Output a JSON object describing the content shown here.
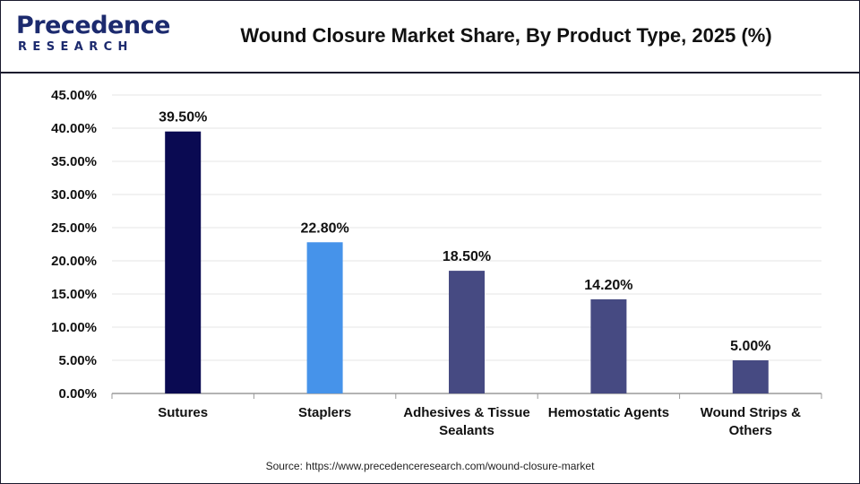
{
  "brand": {
    "logo_main": "Precedence",
    "logo_sub": "RESEARCH"
  },
  "title": "Wound Closure Market Share, By Product Type, 2025 (%)",
  "source": "Source: https://www.precedenceresearch.com/wound-closure-market",
  "chart_data": {
    "type": "bar",
    "title": "Wound Closure Market Share, By Product Type, 2025 (%)",
    "xlabel": "",
    "ylabel": "",
    "categories": [
      [
        "Sutures"
      ],
      [
        "Staplers"
      ],
      [
        "Adhesives & Tissue",
        "Sealants"
      ],
      [
        "Hemostatic Agents"
      ],
      [
        "Wound Strips &",
        "Others"
      ]
    ],
    "values": [
      39.5,
      22.8,
      18.5,
      14.2,
      5.0
    ],
    "data_labels": [
      "39.50%",
      "22.80%",
      "18.50%",
      "14.20%",
      "5.00%"
    ],
    "bar_colors": [
      "#0a0a52",
      "#4693ea",
      "#464a82",
      "#464a82",
      "#464a82"
    ],
    "ylim": [
      0,
      45
    ],
    "yticks": [
      0,
      5,
      10,
      15,
      20,
      25,
      30,
      35,
      40,
      45
    ],
    "ytick_labels": [
      "0.00%",
      "5.00%",
      "10.00%",
      "15.00%",
      "20.00%",
      "25.00%",
      "30.00%",
      "35.00%",
      "40.00%",
      "45.00%"
    ],
    "grid": true,
    "legend": "none"
  }
}
